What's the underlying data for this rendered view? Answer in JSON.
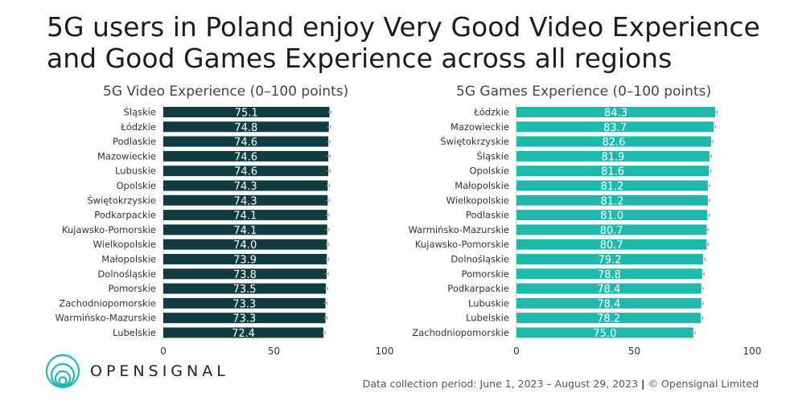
{
  "title": {
    "line1": "5G users in Poland enjoy Very Good Video Experience",
    "line2": "and Good Games Experience across all regions"
  },
  "brand": {
    "part1": "OPEN",
    "part2": "SIGNAL"
  },
  "footer": {
    "period": "Data collection period: June 1, 2023 – August 29, 2023",
    "separator": "|",
    "copyright": "© Opensignal Limited"
  },
  "colors": {
    "video": "#0f3c41",
    "games": "#1fb8ad",
    "errorbar": "#999999"
  },
  "chart_data": [
    {
      "type": "bar",
      "orientation": "horizontal",
      "title": "5G Video Experience (0–100 points)",
      "xlim": [
        0,
        100
      ],
      "xticks": [
        0,
        50,
        100
      ],
      "categories": [
        "Śląskie",
        "Łódzkie",
        "Podlaskie",
        "Mazowieckie",
        "Lubuskie",
        "Opolskie",
        "Świętokrzyskie",
        "Podkarpackie",
        "Kujawsko-Pomorskie",
        "Wielkopolskie",
        "Małopolskie",
        "Dolnośląskie",
        "Pomorskie",
        "Zachodniopomorskie",
        "Warmińsko-Mazurskie",
        "Lubelskie"
      ],
      "values": [
        75.1,
        74.8,
        74.6,
        74.6,
        74.6,
        74.3,
        74.3,
        74.1,
        74.1,
        74.0,
        73.9,
        73.8,
        73.5,
        73.3,
        73.3,
        72.4
      ],
      "labels": [
        "75.1",
        "74.8",
        "74.6",
        "74.6",
        "74.6",
        "74.3",
        "74.3",
        "74.1",
        "74.1",
        "74.0",
        "73.9",
        "73.8",
        "73.5",
        "73.3",
        "73.3",
        "72.4"
      ]
    },
    {
      "type": "bar",
      "orientation": "horizontal",
      "title": "5G Games Experience (0–100 points)",
      "xlim": [
        0,
        100
      ],
      "xticks": [
        0,
        50,
        100
      ],
      "categories": [
        "Łódzkie",
        "Mazowieckie",
        "Świętokrzyskie",
        "Śląskie",
        "Opolskie",
        "Małopolskie",
        "Wielkopolskie",
        "Podlaskie",
        "Warmińsko-Mazurskie",
        "Kujawsko-Pomorskie",
        "Dolnośląskie",
        "Pomorskie",
        "Podkarpackie",
        "Lubuskie",
        "Lubelskie",
        "Zachodniopomorskie"
      ],
      "values": [
        84.3,
        83.7,
        82.6,
        81.9,
        81.6,
        81.2,
        81.2,
        81.0,
        80.7,
        80.7,
        79.2,
        78.8,
        78.4,
        78.4,
        78.2,
        75.0
      ],
      "labels": [
        "84.3",
        "83.7",
        "82.6",
        "81.9",
        "81.6",
        "81.2",
        "81.2",
        "81.0",
        "80.7",
        "80.7",
        "79.2",
        "78.8",
        "78.4",
        "78.4",
        "78.2",
        "75.0"
      ]
    }
  ]
}
